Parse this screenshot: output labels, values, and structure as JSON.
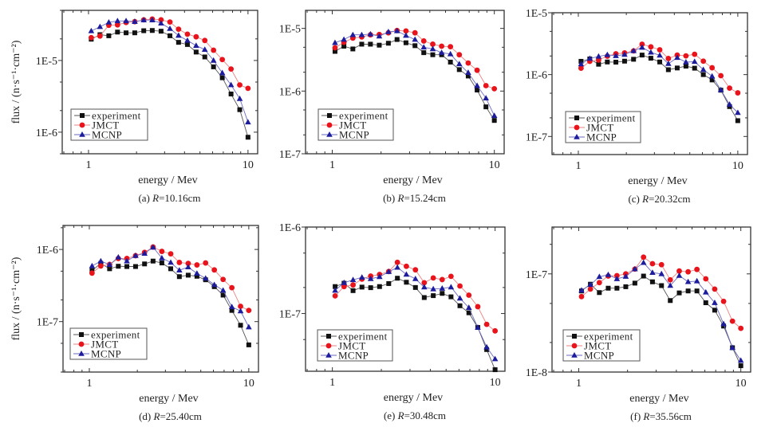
{
  "chart_data": [
    {
      "type": "line",
      "panel": "a",
      "caption_prefix": "(a) ",
      "caption_var": "R",
      "caption_suffix": "=10.16cm",
      "xlabel": "energy / Mev",
      "ylabel": "flux / (n·s⁻¹·cm⁻²)",
      "xscale": "log",
      "yscale": "log",
      "xlim": [
        0.684,
        11.5
      ],
      "ylim": [
        5e-07,
        5e-05
      ],
      "x_ticks": [
        {
          "value": 1,
          "label": "1"
        },
        {
          "value": 10,
          "label": "10"
        }
      ],
      "y_ticks": [
        {
          "value": 1e-05,
          "label": "1E-5"
        },
        {
          "value": 1e-06,
          "label": "1E-6"
        }
      ],
      "legend_position": "bottom-left",
      "x": [
        1.04,
        1.18,
        1.34,
        1.52,
        1.72,
        1.95,
        2.22,
        2.51,
        2.85,
        3.24,
        3.67,
        4.17,
        4.73,
        5.36,
        6.08,
        6.9,
        7.83,
        8.88,
        10
      ],
      "series": [
        {
          "name": "experiment",
          "values": [
            1.98e-05,
            2.29e-05,
            2.21e-05,
            2.49e-05,
            2.43e-05,
            2.43e-05,
            2.6e-05,
            2.62e-05,
            2.56e-05,
            2.21e-05,
            1.79e-05,
            1.67e-05,
            1.31e-05,
            1.12e-05,
            8.15e-06,
            5.74e-06,
            3.41e-06,
            2.06e-06,
            8.5e-07
          ]
        },
        {
          "name": "JMCT",
          "values": [
            2.08e-05,
            2.19e-05,
            3.1e-05,
            3.14e-05,
            3.39e-05,
            3.48e-05,
            3.69e-05,
            3.78e-05,
            3.69e-05,
            3.44e-05,
            2.73e-05,
            2.33e-05,
            2.14e-05,
            1.9e-05,
            1.39e-05,
            1.03e-05,
            7.6e-06,
            4.56e-06,
            4.09e-06
          ]
        },
        {
          "name": "MCNP",
          "values": [
            2.58e-05,
            2.95e-05,
            3.41e-05,
            3.56e-05,
            3.56e-05,
            3.48e-05,
            3.66e-05,
            3.66e-05,
            3.3e-05,
            2.78e-05,
            2.23e-05,
            1.9e-05,
            1.61e-05,
            1.42e-05,
            1e-05,
            6.7e-06,
            4.56e-06,
            2.93e-06,
            1.38e-06
          ]
        }
      ]
    },
    {
      "type": "line",
      "panel": "b",
      "caption_prefix": "(b) ",
      "caption_var": "R",
      "caption_suffix": "=15.24cm",
      "xlabel": "energy / Mev",
      "ylabel": "",
      "xscale": "log",
      "yscale": "log",
      "xlim": [
        0.684,
        11.5
      ],
      "ylim": [
        1e-07,
        1.94e-05
      ],
      "x_ticks": [
        {
          "value": 1,
          "label": "1"
        },
        {
          "value": 10,
          "label": "10"
        }
      ],
      "y_ticks": [
        {
          "value": 1e-05,
          "label": "1E-5"
        },
        {
          "value": 1e-06,
          "label": "1E-6"
        },
        {
          "value": 1e-07,
          "label": "1E-7"
        }
      ],
      "legend_position": "bottom-left",
      "x": [
        1.04,
        1.18,
        1.34,
        1.52,
        1.72,
        1.95,
        2.22,
        2.51,
        2.85,
        3.24,
        3.67,
        4.17,
        4.73,
        5.36,
        6.08,
        6.9,
        7.83,
        8.88,
        10
      ],
      "series": [
        {
          "name": "experiment",
          "values": [
            4.3e-06,
            5.2e-06,
            4.7e-06,
            5.6e-06,
            5.6e-06,
            5.4e-06,
            5.8e-06,
            6.65e-06,
            5.9e-06,
            5.3e-06,
            4.1e-06,
            3.8e-06,
            3.8e-06,
            2.9e-06,
            2.2e-06,
            1.74e-06,
            1.04e-06,
            5.6e-07,
            3.4e-07
          ]
        },
        {
          "name": "JMCT",
          "values": [
            4.9e-06,
            6e-06,
            7e-06,
            7.3e-06,
            7.9e-06,
            8e-06,
            8.5e-06,
            9.25e-06,
            9.1e-06,
            8.5e-06,
            6.3e-06,
            5.6e-06,
            5.2e-06,
            5.1e-06,
            3.8e-06,
            2.8e-06,
            2.15e-06,
            1.22e-06,
            1.09e-06
          ]
        },
        {
          "name": "MCNP",
          "values": [
            5.9e-06,
            6.65e-06,
            7.9e-06,
            7.9e-06,
            8.1e-06,
            7.5e-06,
            8.8e-06,
            9.1e-06,
            7.7e-06,
            6.65e-06,
            5e-06,
            4.7e-06,
            4.1e-06,
            3.9e-06,
            2.7e-06,
            1.97e-06,
            1.22e-06,
            7.7e-07,
            4.05e-07
          ]
        }
      ]
    },
    {
      "type": "line",
      "panel": "c",
      "caption_prefix": "(c) ",
      "caption_var": "R",
      "caption_suffix": "=20.32cm",
      "xlabel": "energy / Mev",
      "ylabel": "",
      "xscale": "log",
      "yscale": "log",
      "xlim": [
        0.684,
        11.5
      ],
      "ylim": [
        5.1e-08,
        1e-05
      ],
      "x_ticks": [
        {
          "value": 1,
          "label": "1"
        },
        {
          "value": 10,
          "label": "10"
        }
      ],
      "y_ticks": [
        {
          "value": 1e-05,
          "label": "1E-5"
        },
        {
          "value": 1e-06,
          "label": "1E-6"
        },
        {
          "value": 1e-07,
          "label": "1E-7"
        }
      ],
      "legend_position": "bottom-left",
      "x": [
        1.04,
        1.18,
        1.34,
        1.52,
        1.72,
        1.95,
        2.22,
        2.51,
        2.85,
        3.24,
        3.67,
        4.17,
        4.73,
        5.36,
        6.08,
        6.9,
        7.83,
        8.88,
        10
      ],
      "series": [
        {
          "name": "experiment",
          "values": [
            1.64e-06,
            1.79e-06,
            1.47e-06,
            1.6e-06,
            1.59e-06,
            1.65e-06,
            1.77e-06,
            2.07e-06,
            1.84e-06,
            1.6e-06,
            1.2e-06,
            1.28e-06,
            1.37e-06,
            1.27e-06,
            1e-06,
            8.2e-07,
            5.6e-07,
            3.04e-07,
            1.8e-07
          ]
        },
        {
          "name": "JMCT",
          "values": [
            1.27e-06,
            1.64e-06,
            1.72e-06,
            1.99e-06,
            2.17e-06,
            2.24e-06,
            2.42e-06,
            3.1e-06,
            2.81e-06,
            2.52e-06,
            1.82e-06,
            2.07e-06,
            2.01e-06,
            2.13e-06,
            1.65e-06,
            1.29e-06,
            9.6e-07,
            6.05e-07,
            5.07e-07
          ]
        },
        {
          "name": "MCNP",
          "values": [
            1.48e-06,
            1.82e-06,
            1.97e-06,
            2.09e-06,
            2.01e-06,
            2.11e-06,
            2.42e-06,
            2.75e-06,
            2.29e-06,
            2.05e-06,
            1.5e-06,
            1.88e-06,
            1.59e-06,
            1.62e-06,
            1.2e-06,
            9.4e-07,
            5.66e-07,
            3.29e-07,
            2.42e-07
          ]
        }
      ]
    },
    {
      "type": "line",
      "panel": "d",
      "caption_prefix": "(d) ",
      "caption_var": "R",
      "caption_suffix": "=25.40cm",
      "xlabel": "energy / Mev",
      "ylabel": "flux / (n·s⁻¹·cm⁻²)",
      "xscale": "log",
      "yscale": "log",
      "xlim": [
        0.684,
        11.5
      ],
      "ylim": [
        2e-08,
        2.15e-06
      ],
      "x_ticks": [
        {
          "value": 1,
          "label": "1"
        },
        {
          "value": 10,
          "label": "10"
        }
      ],
      "y_ticks": [
        {
          "value": 1e-06,
          "label": "1E-6"
        },
        {
          "value": 1e-07,
          "label": "1E-7"
        }
      ],
      "legend_position": "bottom-left",
      "x": [
        1.04,
        1.18,
        1.34,
        1.52,
        1.72,
        1.95,
        2.22,
        2.51,
        2.85,
        3.24,
        3.67,
        4.17,
        4.73,
        5.36,
        6.08,
        6.9,
        7.83,
        8.88,
        10
      ],
      "series": [
        {
          "name": "experiment",
          "values": [
            5.1e-07,
            6.4e-07,
            5.4e-07,
            5.85e-07,
            5.8e-07,
            5.8e-07,
            6.3e-07,
            6.9e-07,
            6.5e-07,
            5.4e-07,
            4.2e-07,
            4.4e-07,
            4.25e-07,
            3.8e-07,
            3.05e-07,
            2.33e-07,
            1.43e-07,
            8.9e-08,
            4.76e-08
          ]
        },
        {
          "name": "JMCT",
          "values": [
            4.7e-07,
            5.9e-07,
            6.2e-07,
            7.5e-07,
            7.5e-07,
            8.2e-07,
            9.1e-07,
            1.08e-06,
            9.4e-07,
            8.7e-07,
            6.6e-07,
            6.4e-07,
            6.1e-07,
            6.5e-07,
            5.2e-07,
            3.84e-07,
            2.95e-07,
            1.63e-07,
            1.43e-07
          ]
        },
        {
          "name": "MCNP",
          "values": [
            5.9e-07,
            6.9e-07,
            6.15e-07,
            7.8e-07,
            6.9e-07,
            8.2e-07,
            8.8e-07,
            1.07e-06,
            7.6e-07,
            6.6e-07,
            5.15e-07,
            5.7e-07,
            4.65e-07,
            3.98e-07,
            3.24e-07,
            2.71e-07,
            1.6e-07,
            1.4e-07,
            8.4e-08
          ]
        }
      ]
    },
    {
      "type": "line",
      "panel": "e",
      "caption_prefix": "(e) ",
      "caption_var": "R",
      "caption_suffix": "=30.48cm",
      "xlabel": "energy / Mev",
      "ylabel": "",
      "xscale": "log",
      "yscale": "log",
      "xlim": [
        0.684,
        11.5
      ],
      "ylim": [
        2.15e-08,
        1e-06
      ],
      "x_ticks": [
        {
          "value": 1,
          "label": "1"
        },
        {
          "value": 10,
          "label": "10"
        }
      ],
      "y_ticks": [
        {
          "value": 1e-06,
          "label": "1E-6"
        },
        {
          "value": 1e-07,
          "label": "1E-7"
        }
      ],
      "legend_position": "bottom-left",
      "x": [
        1.04,
        1.18,
        1.34,
        1.52,
        1.72,
        1.95,
        2.22,
        2.51,
        2.85,
        3.24,
        3.67,
        4.17,
        4.73,
        5.36,
        6.08,
        6.9,
        7.83,
        8.88,
        10
      ],
      "series": [
        {
          "name": "experiment",
          "values": [
            2.05e-07,
            2.24e-07,
            1.84e-07,
            2.02e-07,
            1.99e-07,
            2.05e-07,
            2.22e-07,
            2.56e-07,
            2.3e-07,
            2e-07,
            1.53e-07,
            1.61e-07,
            1.71e-07,
            1.56e-07,
            1.23e-07,
            1.02e-07,
            6.9e-08,
            3.83e-08,
            2.24e-08
          ]
        },
        {
          "name": "JMCT",
          "values": [
            1.6e-07,
            2.05e-07,
            2.14e-07,
            2.5e-07,
            2.71e-07,
            2.83e-07,
            3.06e-07,
            3.91e-07,
            3.52e-07,
            3.2e-07,
            2.27e-07,
            2.58e-07,
            2.47e-07,
            2.69e-07,
            2.08e-07,
            1.63e-07,
            1.2e-07,
            7.5e-08,
            6.3e-08
          ]
        },
        {
          "name": "MCNP",
          "values": [
            1.85e-07,
            2.27e-07,
            2.45e-07,
            2.62e-07,
            2.52e-07,
            2.66e-07,
            3.04e-07,
            3.41e-07,
            2.83e-07,
            2.52e-07,
            2.02e-07,
            1.92e-07,
            1.95e-07,
            2.02e-07,
            1.5e-07,
            1.17e-07,
            6.9e-08,
            4.08e-08,
            2.98e-08
          ]
        }
      ]
    },
    {
      "type": "line",
      "panel": "f",
      "caption_prefix": "(f) ",
      "caption_var": "R",
      "caption_suffix": "=35.56cm",
      "xlabel": "energy / Mev",
      "ylabel": "",
      "xscale": "log",
      "yscale": "log",
      "xlim": [
        0.684,
        11.5
      ],
      "ylim": [
        1e-08,
        3e-07
      ],
      "x_ticks": [
        {
          "value": 1,
          "label": "1"
        },
        {
          "value": 10,
          "label": "10"
        }
      ],
      "y_ticks": [
        {
          "value": 1e-07,
          "label": "1E-7"
        },
        {
          "value": 1e-08,
          "label": "1E-8"
        }
      ],
      "legend_position": "bottom-left",
      "x": [
        1.04,
        1.18,
        1.34,
        1.52,
        1.72,
        1.95,
        2.22,
        2.51,
        2.85,
        3.24,
        3.67,
        4.17,
        4.73,
        5.36,
        6.08,
        6.9,
        7.83,
        8.88,
        10
      ],
      "series": [
        {
          "name": "experiment",
          "values": [
            6.7e-08,
            7.85e-08,
            6.45e-08,
            7.15e-08,
            7.15e-08,
            7.4e-08,
            8.05e-08,
            9.5e-08,
            8.3e-08,
            7.6e-08,
            5.35e-08,
            6.4e-08,
            6.7e-08,
            6.7e-08,
            5.08e-08,
            4.27e-08,
            2.94e-08,
            1.77e-08,
            1.16e-08
          ]
        },
        {
          "name": "JMCT",
          "values": [
            5.87e-08,
            7e-08,
            8.15e-08,
            9.5e-08,
            9.6e-08,
            1e-07,
            1.12e-07,
            1.48e-07,
            1.27e-07,
            1.24e-07,
            8.7e-08,
            1.07e-07,
            1.05e-07,
            1.11e-07,
            8.9e-08,
            7e-08,
            5.25e-08,
            3.3e-08,
            2.79e-08
          ]
        },
        {
          "name": "MCNP",
          "values": [
            6.8e-08,
            7.76e-08,
            9.35e-08,
            9.8e-08,
            8.9e-08,
            9.4e-08,
            1.12e-07,
            1.3e-07,
            1.03e-07,
            1e-07,
            7.6e-08,
            9.6e-08,
            8.3e-08,
            8.45e-08,
            6.5e-08,
            5.08e-08,
            3.09e-08,
            1.77e-08,
            1.31e-08
          ]
        }
      ]
    }
  ],
  "series_styles": {
    "experiment": {
      "color": "#111111",
      "line_color": "#555555",
      "marker": "square"
    },
    "JMCT": {
      "color": "#e8131b",
      "line_color": "#ef8080",
      "marker": "circle"
    },
    "MCNP": {
      "color": "#1c1c9c",
      "line_color": "#6a6ac0",
      "marker": "triangle"
    }
  }
}
